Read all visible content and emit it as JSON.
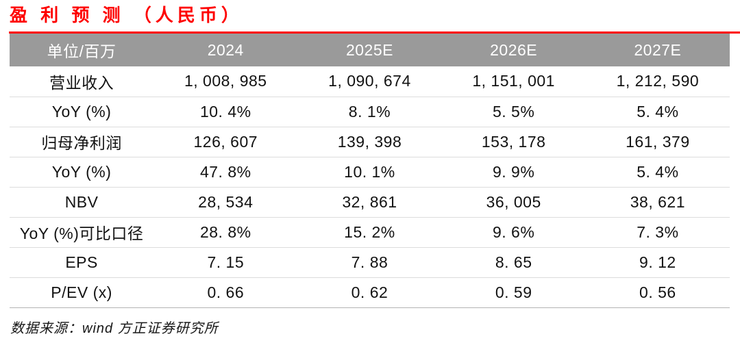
{
  "title": {
    "text": "盈 利 预 测 （人民币）"
  },
  "colors": {
    "accent_red": "#fe0000",
    "header_bg": "#9a9a9a",
    "header_text": "#ffffff",
    "body_text": "#121212",
    "row_divider": "#dcdcdc",
    "table_bottom_border": "#b3b3b3"
  },
  "table": {
    "columns": [
      "单位/百万",
      "2024",
      "2025E",
      "2026E",
      "2027E"
    ],
    "rows": [
      {
        "label": "营业收入",
        "values": [
          "1, 008, 985",
          "1, 090, 674",
          "1, 151, 001",
          "1, 212, 590"
        ]
      },
      {
        "label": "YoY (%)",
        "values": [
          "10. 4%",
          "8. 1%",
          "5. 5%",
          "5. 4%"
        ]
      },
      {
        "label": "归母净利润",
        "values": [
          "126, 607",
          "139, 398",
          "153, 178",
          "161, 379"
        ]
      },
      {
        "label": "YoY (%)",
        "values": [
          "47. 8%",
          "10. 1%",
          "9. 9%",
          "5. 4%"
        ]
      },
      {
        "label": "NBV",
        "values": [
          "28, 534",
          "32, 861",
          "36, 005",
          "38, 621"
        ]
      },
      {
        "label": "YoY (%)可比口径",
        "values": [
          "28. 8%",
          "15. 2%",
          "9. 6%",
          "7. 3%"
        ]
      },
      {
        "label": "EPS",
        "values": [
          "7. 15",
          "7. 88",
          "8. 65",
          "9. 12"
        ]
      },
      {
        "label": "P/EV (x)",
        "values": [
          "0. 66",
          "0. 62",
          "0. 59",
          "0. 56"
        ]
      }
    ]
  },
  "footer": {
    "source": "数据来源：wind 方正证券研究所"
  }
}
